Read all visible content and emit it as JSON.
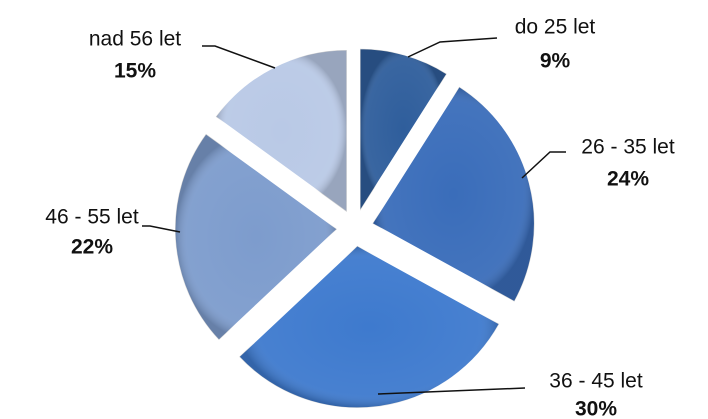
{
  "chart_data": {
    "type": "pie",
    "categories": [
      "do 25 let",
      "26 - 35 let",
      "36 - 45 let",
      "46 - 55 let",
      "nad 56 let"
    ],
    "values": [
      9,
      24,
      30,
      22,
      15
    ],
    "value_labels": [
      "9%",
      "24%",
      "30%",
      "22%",
      "15%"
    ],
    "colors": [
      "#2f5e9c",
      "#3a6dba",
      "#3e7ace",
      "#7d9ccd",
      "#b9c9e6"
    ]
  }
}
